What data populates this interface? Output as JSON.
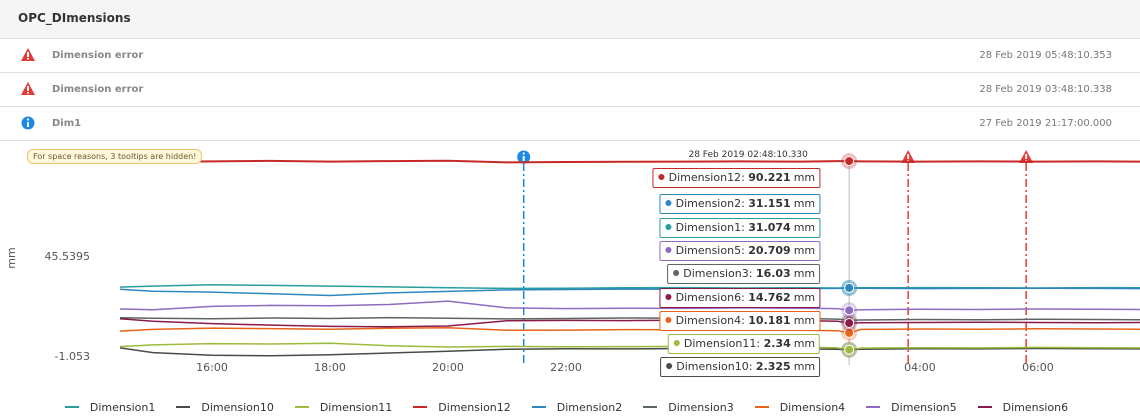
{
  "header": {
    "title": "OPC_DImensions"
  },
  "events": [
    {
      "title": "Dimension error",
      "time": "28 Feb 2019 05:48:10.353",
      "icon": "error"
    },
    {
      "title": "Dimension error",
      "time": "28 Feb 2019 03:48:10.338",
      "icon": "error"
    },
    {
      "title": "Dim1",
      "time": "27 Feb 2019 21:17:00.000",
      "icon": "info"
    }
  ],
  "chart_data": {
    "type": "line",
    "note": "For space reasons, 3 tooltips are hidden!",
    "y_label": "mm",
    "x": [
      14.44,
      15,
      16,
      17,
      18,
      19,
      20,
      21,
      22,
      23,
      24,
      25,
      26,
      26.6,
      26.8,
      27,
      28,
      29,
      30,
      31,
      31.73
    ],
    "xlim": [
      14.44,
      31.73
    ],
    "xticks": [
      {
        "value": 16,
        "label": "16:00"
      },
      {
        "value": 18,
        "label": "18:00"
      },
      {
        "value": 20,
        "label": "20:00"
      },
      {
        "value": 22,
        "label": "22:00"
      },
      {
        "value": 24,
        "label": "00:00"
      },
      {
        "value": 26,
        "label": "02:00"
      },
      {
        "value": 28,
        "label": "04:00"
      },
      {
        "value": 30,
        "label": "06:00"
      }
    ],
    "ylim": [
      -4.78,
      95.39
    ],
    "yticks": [
      -1.053,
      45.5395
    ],
    "grid": false,
    "crosshair": {
      "x": 26.8,
      "index": 14,
      "label": "28 Feb 2019 02:48:10.330"
    },
    "event_lines": [
      {
        "x": 21.283,
        "icon": "info",
        "color": "#1e88e5"
      },
      {
        "x": 27.8,
        "icon": "error",
        "color": "#e53935"
      },
      {
        "x": 29.8,
        "icon": "error",
        "color": "#e53935"
      }
    ],
    "series": [
      {
        "name": "Dimension1",
        "color": "#2a9d9f",
        "values": [
          31.5,
          32.0,
          32.6,
          32.3,
          32.0,
          31.6,
          31.2,
          30.9,
          31.0,
          31.2,
          31.3,
          31.1,
          31.2,
          31.1,
          31.074,
          31.2,
          31.3,
          31.2,
          31.1,
          31.3,
          31.2
        ]
      },
      {
        "name": "Dimension10",
        "color": "#4a4a4a",
        "values": [
          3.2,
          1.0,
          -0.2,
          -0.5,
          0.0,
          0.8,
          1.6,
          2.6,
          2.8,
          2.7,
          2.9,
          2.8,
          2.7,
          2.6,
          2.325,
          2.6,
          2.8,
          2.7,
          2.9,
          2.8,
          2.7
        ]
      },
      {
        "name": "Dimension11",
        "color": "#9bbb3c",
        "values": [
          3.8,
          4.6,
          5.2,
          5.0,
          5.4,
          4.2,
          3.6,
          3.9,
          3.7,
          3.8,
          3.9,
          3.7,
          3.6,
          3.2,
          2.34,
          3.1,
          3.3,
          3.2,
          3.4,
          3.3,
          3.2
        ]
      },
      {
        "name": "Dimension12",
        "color": "#c62828",
        "values": [
          89.8,
          89.9,
          90.1,
          90.3,
          90.0,
          90.2,
          90.4,
          89.6,
          89.8,
          89.9,
          90.0,
          90.1,
          90.0,
          90.2,
          90.221,
          90.1,
          90.0,
          90.1,
          90.0,
          90.1,
          90.0
        ]
      },
      {
        "name": "Dimension2",
        "color": "#2e86c1",
        "values": [
          30.5,
          29.6,
          29.2,
          28.4,
          27.6,
          28.8,
          29.5,
          30.2,
          30.4,
          30.6,
          30.5,
          30.7,
          30.8,
          30.9,
          31.151,
          31.0,
          30.8,
          30.9,
          31.0,
          30.9,
          30.8
        ]
      },
      {
        "name": "Dimension3",
        "color": "#5d6464",
        "values": [
          17.2,
          17.0,
          16.8,
          17.1,
          16.9,
          17.3,
          17.0,
          16.7,
          16.9,
          17.1,
          17.0,
          16.8,
          16.9,
          16.6,
          16.03,
          16.2,
          16.4,
          16.3,
          16.5,
          16.4,
          16.3
        ]
      },
      {
        "name": "Dimension4",
        "color": "#e8641b",
        "values": [
          11.0,
          11.8,
          12.4,
          12.2,
          11.9,
          12.3,
          12.6,
          11.4,
          11.5,
          11.7,
          11.6,
          11.5,
          11.4,
          11.2,
          10.181,
          11.8,
          12.0,
          11.9,
          12.1,
          12.0,
          11.9
        ]
      },
      {
        "name": "Dimension5",
        "color": "#8e6bbf",
        "values": [
          21.3,
          21.0,
          22.5,
          23.0,
          22.8,
          23.4,
          25.0,
          21.8,
          21.5,
          21.7,
          21.6,
          21.8,
          21.7,
          21.5,
          20.709,
          21.0,
          21.2,
          21.1,
          21.3,
          21.2,
          21.1
        ]
      },
      {
        "name": "Dimension6",
        "color": "#8b1a4a",
        "values": [
          16.8,
          15.6,
          14.5,
          13.8,
          13.2,
          13.0,
          13.4,
          15.8,
          16.0,
          15.9,
          16.1,
          15.8,
          15.9,
          15.6,
          14.762,
          14.9,
          15.0,
          15.1,
          15.0,
          14.9,
          15.0
        ]
      }
    ]
  }
}
